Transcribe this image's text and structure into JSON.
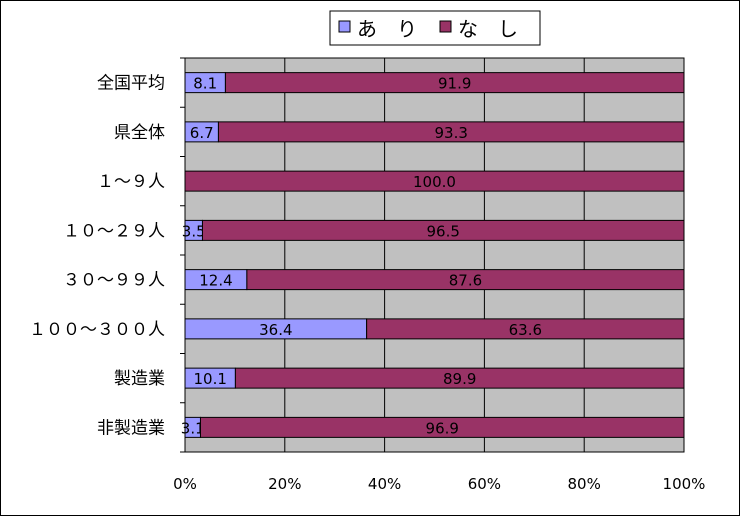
{
  "chart_data": {
    "type": "bar",
    "orientation": "horizontal",
    "stacked": "percent",
    "categories": [
      "全国平均",
      "県全体",
      "１～９人",
      "１０～２９人",
      "３０～９９人",
      "１００～３００人",
      "製造業",
      "非製造業"
    ],
    "series": [
      {
        "name": "あ　り",
        "color": "#9999ff",
        "values": [
          8.1,
          6.7,
          0,
          3.5,
          12.4,
          36.4,
          10.1,
          3.1
        ],
        "labels": [
          "8.1",
          "6.7",
          "",
          "3.5",
          "12.4",
          "36.4",
          "10.1",
          "3.1"
        ]
      },
      {
        "name": "な　し",
        "color": "#993366",
        "values": [
          91.9,
          93.3,
          100.0,
          96.5,
          87.6,
          63.6,
          89.9,
          96.9
        ],
        "labels": [
          "91.9",
          "93.3",
          "100.0",
          "96.5",
          "87.6",
          "63.6",
          "89.9",
          "96.9"
        ]
      }
    ],
    "x_ticks": [
      "0%",
      "20%",
      "40%",
      "60%",
      "80%",
      "100%"
    ],
    "xlim": [
      0,
      100
    ],
    "grid": true,
    "plot_background": "#c0c0c0",
    "legend_position": "top-right"
  }
}
